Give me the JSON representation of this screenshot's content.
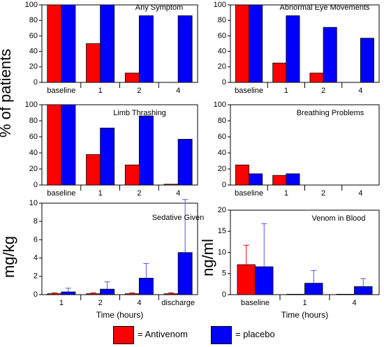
{
  "left_ylabel_top": "% of patients",
  "left_ylabel_bottom": "mg/kg",
  "right_ylabel_bottom": "ng/ml",
  "legend": {
    "antivenom": "= Antivenom",
    "placebo": "= placebo"
  },
  "colors": {
    "antivenom": "#ff0000",
    "placebo": "#0000ff",
    "error": "#5555dd"
  },
  "chart_data": [
    {
      "type": "bar",
      "title": "Any Symptom",
      "categories": [
        "baseline",
        "1",
        "2",
        "4"
      ],
      "series": [
        {
          "name": "Antivenom",
          "values": [
            100,
            50,
            12,
            null
          ]
        },
        {
          "name": "placebo",
          "values": [
            100,
            100,
            86,
            86
          ]
        }
      ],
      "ylim": [
        0,
        100
      ],
      "yticks": [
        0,
        20,
        40,
        60,
        80,
        100
      ],
      "ylabel": "",
      "xlabel": ""
    },
    {
      "type": "bar",
      "title": "Abnormal Eye Movements",
      "categories": [
        "baseline",
        "1",
        "2",
        "4"
      ],
      "series": [
        {
          "name": "Antivenom",
          "values": [
            100,
            25,
            12,
            null
          ]
        },
        {
          "name": "placebo",
          "values": [
            100,
            86,
            71,
            57
          ]
        }
      ],
      "ylim": [
        0,
        100
      ],
      "yticks": [
        0,
        20,
        40,
        60,
        80,
        100
      ],
      "ylabel": "",
      "xlabel": ""
    },
    {
      "type": "bar",
      "title": "Limb Thrashing",
      "categories": [
        "baseline",
        "1",
        "2",
        "4"
      ],
      "series": [
        {
          "name": "Antivenom",
          "values": [
            100,
            38,
            25,
            1
          ]
        },
        {
          "name": "placebo",
          "values": [
            100,
            71,
            86,
            57
          ]
        }
      ],
      "ylim": [
        0,
        100
      ],
      "yticks": [
        0,
        20,
        40,
        60,
        80,
        100
      ],
      "ylabel": "",
      "xlabel": ""
    },
    {
      "type": "bar",
      "title": "Breathing Problems",
      "categories": [
        "baseline",
        "1",
        "2",
        "4"
      ],
      "series": [
        {
          "name": "Antivenom",
          "values": [
            25,
            12,
            null,
            null
          ]
        },
        {
          "name": "placebo",
          "values": [
            14,
            14,
            null,
            null
          ]
        }
      ],
      "ylim": [
        0,
        100
      ],
      "yticks": [
        0,
        20,
        40,
        60,
        80,
        100
      ],
      "ylabel": "",
      "xlabel": ""
    },
    {
      "type": "bar",
      "title": "Sedative Given",
      "categories": [
        "1",
        "2",
        "4",
        "discharge"
      ],
      "series": [
        {
          "name": "Antivenom",
          "values": [
            0.1,
            0.1,
            0.1,
            0.1
          ],
          "errors": [
            0.1,
            0.1,
            0.1,
            0.1
          ]
        },
        {
          "name": "placebo",
          "values": [
            0.3,
            0.6,
            1.8,
            4.6
          ],
          "errors": [
            0.4,
            0.8,
            1.6,
            5.8
          ]
        }
      ],
      "ylim": [
        0,
        10
      ],
      "yticks": [
        0,
        2,
        4,
        6,
        8,
        10
      ],
      "ylabel": "",
      "xlabel": "Time (hours)"
    },
    {
      "type": "bar",
      "title": "Venom in Blood",
      "categories": [
        "baseline",
        "1",
        "4"
      ],
      "series": [
        {
          "name": "Antivenom",
          "values": [
            7.1,
            0.1,
            0.1
          ],
          "errors": [
            4.6,
            0,
            0
          ]
        },
        {
          "name": "placebo",
          "values": [
            6.6,
            2.7,
            1.9
          ],
          "errors": [
            10.2,
            3.0,
            1.9
          ]
        }
      ],
      "ylim": [
        0,
        20
      ],
      "yticks": [
        0,
        5,
        10,
        15,
        20
      ],
      "ylabel": "",
      "xlabel": "Time (hours)"
    }
  ]
}
